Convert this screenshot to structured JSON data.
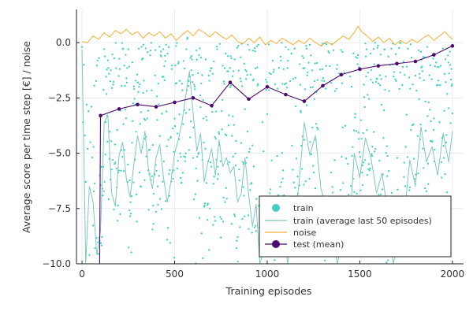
{
  "chart_data": {
    "type": "scatter",
    "xlabel": "Training episodes",
    "ylabel": "Average score per time step [€] / noise",
    "xlim": [
      -30,
      2060
    ],
    "ylim": [
      -10,
      1.5
    ],
    "x_ticks": [
      0,
      500,
      1000,
      1500,
      2000
    ],
    "y_ticks": [
      0.0,
      -2.5,
      -5.0,
      -7.5,
      -10.0
    ],
    "x_tick_labels": [
      "0",
      "500",
      "1000",
      "1500",
      "2000"
    ],
    "y_tick_labels": [
      "0.0",
      "−2.5",
      "−5.0",
      "−7.5",
      "−10.0"
    ],
    "grid": true,
    "legend_position": "bottom-right",
    "colors": {
      "train": "#40d0c0",
      "train_avg": "#7ec8c2",
      "noise": "#f5b030",
      "test": "#4b0a6e"
    },
    "series": [
      {
        "name": "train",
        "kind": "scatter",
        "description_points": "one point per training episode; values span roughly -10 to 0.5",
        "points_sample": [
          [
            0,
            -0.2
          ],
          [
            5,
            -3.6
          ],
          [
            10,
            -1.0
          ],
          [
            15,
            -4.2
          ],
          [
            20,
            -6.3
          ],
          [
            25,
            -2.8
          ],
          [
            30,
            -4.8
          ],
          [
            35,
            -3.1
          ],
          [
            40,
            -9.6
          ],
          [
            45,
            -4.5
          ],
          [
            50,
            -2.9
          ],
          [
            55,
            -5.2
          ]
        ]
      },
      {
        "name": "train (average last 50 episodes)",
        "kind": "line",
        "points": [
          [
            0,
            -0.3
          ],
          [
            10,
            -5.0
          ],
          [
            20,
            -10.0
          ],
          [
            40,
            -6.5
          ],
          [
            60,
            -7.2
          ],
          [
            80,
            -9.6
          ],
          [
            100,
            -8.5
          ],
          [
            120,
            -3.6
          ],
          [
            140,
            -3.3
          ],
          [
            160,
            -6.8
          ],
          [
            180,
            -7.4
          ],
          [
            200,
            -5.1
          ],
          [
            220,
            -4.5
          ],
          [
            240,
            -6.2
          ],
          [
            260,
            -7.0
          ],
          [
            280,
            -5.5
          ],
          [
            300,
            -4.2
          ],
          [
            320,
            -5.0
          ],
          [
            340,
            -4.0
          ],
          [
            360,
            -5.8
          ],
          [
            380,
            -6.6
          ],
          [
            400,
            -5.2
          ],
          [
            420,
            -4.6
          ],
          [
            440,
            -6.1
          ],
          [
            460,
            -7.2
          ],
          [
            480,
            -6.3
          ],
          [
            500,
            -5.0
          ],
          [
            520,
            -4.4
          ],
          [
            540,
            -3.6
          ],
          [
            560,
            -2.4
          ],
          [
            580,
            -1.3
          ],
          [
            600,
            -3.2
          ],
          [
            620,
            -4.9
          ],
          [
            640,
            -4.1
          ],
          [
            660,
            -6.3
          ],
          [
            680,
            -5.4
          ],
          [
            700,
            -4.8
          ],
          [
            720,
            -6.0
          ],
          [
            740,
            -4.4
          ],
          [
            760,
            -5.6
          ],
          [
            780,
            -5.2
          ],
          [
            800,
            -5.9
          ],
          [
            820,
            -5.6
          ],
          [
            840,
            -7.2
          ],
          [
            860,
            -6.8
          ],
          [
            880,
            -5.2
          ],
          [
            900,
            -6.9
          ],
          [
            920,
            -8.3
          ],
          [
            940,
            -7.3
          ],
          [
            960,
            -10.0
          ],
          [
            990,
            -9.2
          ],
          [
            1020,
            -7.4
          ],
          [
            1050,
            -8.9
          ],
          [
            1080,
            -7.6
          ],
          [
            1110,
            -10.0
          ],
          [
            1140,
            -8.4
          ],
          [
            1170,
            -6.5
          ],
          [
            1200,
            -3.6
          ],
          [
            1230,
            -5.1
          ],
          [
            1260,
            -4.2
          ],
          [
            1290,
            -6.6
          ],
          [
            1320,
            -7.4
          ],
          [
            1350,
            -8.8
          ],
          [
            1380,
            -10.0
          ],
          [
            1410,
            -8.5
          ],
          [
            1440,
            -9.0
          ],
          [
            1470,
            -5.0
          ],
          [
            1500,
            -6.1
          ],
          [
            1530,
            -4.3
          ],
          [
            1560,
            -5.2
          ],
          [
            1590,
            -6.8
          ],
          [
            1620,
            -5.9
          ],
          [
            1650,
            -7.6
          ],
          [
            1680,
            -10.0
          ],
          [
            1710,
            -9.0
          ],
          [
            1740,
            -7.8
          ],
          [
            1770,
            -5.3
          ],
          [
            1800,
            -6.5
          ],
          [
            1830,
            -3.8
          ],
          [
            1860,
            -5.4
          ],
          [
            1890,
            -4.7
          ],
          [
            1920,
            -6.0
          ],
          [
            1950,
            -4.1
          ],
          [
            1980,
            -5.4
          ],
          [
            2000,
            -4.0
          ]
        ]
      },
      {
        "name": "noise",
        "kind": "line",
        "points": [
          [
            0,
            0.05
          ],
          [
            30,
            0.0
          ],
          [
            60,
            0.3
          ],
          [
            90,
            0.15
          ],
          [
            120,
            0.45
          ],
          [
            150,
            0.25
          ],
          [
            180,
            0.55
          ],
          [
            210,
            0.4
          ],
          [
            240,
            0.6
          ],
          [
            270,
            0.35
          ],
          [
            300,
            0.5
          ],
          [
            330,
            0.2
          ],
          [
            360,
            0.45
          ],
          [
            390,
            0.3
          ],
          [
            420,
            0.5
          ],
          [
            450,
            0.2
          ],
          [
            480,
            0.4
          ],
          [
            510,
            0.1
          ],
          [
            540,
            0.35
          ],
          [
            570,
            0.55
          ],
          [
            600,
            0.3
          ],
          [
            630,
            0.6
          ],
          [
            660,
            0.45
          ],
          [
            690,
            0.25
          ],
          [
            720,
            0.5
          ],
          [
            750,
            0.3
          ],
          [
            780,
            0.15
          ],
          [
            810,
            0.35
          ],
          [
            840,
            0.05
          ],
          [
            870,
            -0.05
          ],
          [
            900,
            0.2
          ],
          [
            930,
            0.0
          ],
          [
            960,
            0.25
          ],
          [
            990,
            -0.1
          ],
          [
            1020,
            0.1
          ],
          [
            1050,
            -0.05
          ],
          [
            1080,
            0.2
          ],
          [
            1110,
            0.05
          ],
          [
            1140,
            -0.1
          ],
          [
            1170,
            0.1
          ],
          [
            1200,
            -0.05
          ],
          [
            1230,
            0.2
          ],
          [
            1260,
            0.0
          ],
          [
            1290,
            -0.15
          ],
          [
            1320,
            0.05
          ],
          [
            1350,
            -0.1
          ],
          [
            1380,
            0.1
          ],
          [
            1410,
            0.3
          ],
          [
            1440,
            0.15
          ],
          [
            1470,
            0.45
          ],
          [
            1490,
            0.75
          ],
          [
            1510,
            0.5
          ],
          [
            1540,
            0.3
          ],
          [
            1570,
            0.05
          ],
          [
            1600,
            0.25
          ],
          [
            1630,
            0.0
          ],
          [
            1660,
            0.2
          ],
          [
            1690,
            -0.1
          ],
          [
            1720,
            0.1
          ],
          [
            1750,
            -0.05
          ],
          [
            1780,
            0.15
          ],
          [
            1810,
            0.0
          ],
          [
            1840,
            0.2
          ],
          [
            1870,
            0.35
          ],
          [
            1900,
            0.1
          ],
          [
            1930,
            0.3
          ],
          [
            1960,
            0.5
          ],
          [
            1980,
            0.3
          ],
          [
            2000,
            0.15
          ]
        ]
      },
      {
        "name": "test (mean)",
        "kind": "line+markers",
        "points": [
          [
            100,
            -3.3
          ],
          [
            200,
            -3.0
          ],
          [
            300,
            -2.8
          ],
          [
            400,
            -2.9
          ],
          [
            500,
            -2.7
          ],
          [
            600,
            -2.5
          ],
          [
            700,
            -2.85
          ],
          [
            800,
            -1.8
          ],
          [
            900,
            -2.55
          ],
          [
            1000,
            -2.0
          ],
          [
            1100,
            -2.35
          ],
          [
            1200,
            -2.65
          ],
          [
            1300,
            -1.95
          ],
          [
            1400,
            -1.45
          ],
          [
            1500,
            -1.2
          ],
          [
            1600,
            -1.05
          ],
          [
            1700,
            -0.95
          ],
          [
            1800,
            -0.85
          ],
          [
            1900,
            -0.55
          ],
          [
            2000,
            -0.15
          ]
        ],
        "leading_segment": [
          [
            95,
            -10.0
          ],
          [
            100,
            -3.3
          ]
        ]
      }
    ],
    "legend": [
      {
        "label": "train",
        "marker": "circle"
      },
      {
        "label": "train (average last 50 episodes)",
        "marker": "line"
      },
      {
        "label": "noise",
        "marker": "line"
      },
      {
        "label": "test (mean)",
        "marker": "line+circle"
      }
    ]
  }
}
